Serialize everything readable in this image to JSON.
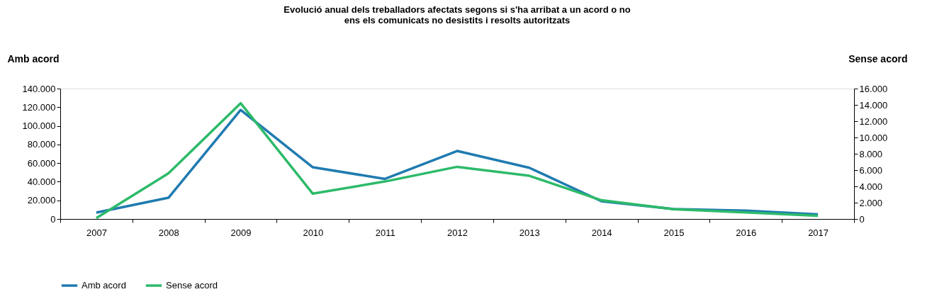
{
  "chart_data": {
    "type": "line",
    "title": [
      "Evolució anual dels treballadors afectats segons si s'ha arribat a un acord o no",
      "ens els comunicats no desistits i resolts autoritzats"
    ],
    "ylabel": "Amb acord",
    "y2label": "Sense acord",
    "categories": [
      "2007",
      "2008",
      "2009",
      "2010",
      "2011",
      "2012",
      "2013",
      "2014",
      "2015",
      "2016",
      "2017"
    ],
    "series": [
      {
        "name": "Amb acord",
        "color": "#1f7bb0",
        "values": [
          6800,
          22800,
          117000,
          55500,
          43000,
          73000,
          55000,
          19000,
          10600,
          9000,
          5000
        ]
      },
      {
        "name": "Sense acord",
        "color": "#2dba6a",
        "axis": "y2",
        "values": [
          100,
          5600,
          14200,
          3100,
          4600,
          6400,
          5300,
          2300,
          1200,
          800,
          400
        ]
      }
    ],
    "ylim": [
      0,
      140000
    ],
    "yticks": [
      {
        "value": 0,
        "label": "0"
      },
      {
        "value": 20000,
        "label": "20.000"
      },
      {
        "value": 40000,
        "label": "40.000"
      },
      {
        "value": 60000,
        "label": "60.000"
      },
      {
        "value": 80000,
        "label": "80.000"
      },
      {
        "value": 100000,
        "label": "100.000"
      },
      {
        "value": 120000,
        "label": "120.000"
      },
      {
        "value": 140000,
        "label": "140.000"
      }
    ],
    "y2lim": [
      0,
      16000
    ],
    "y2ticks": [
      {
        "value": 0,
        "label": "0"
      },
      {
        "value": 2000,
        "label": "2.000"
      },
      {
        "value": 4000,
        "label": "4.000"
      },
      {
        "value": 6000,
        "label": "6.000"
      },
      {
        "value": 8000,
        "label": "8.000"
      },
      {
        "value": 10000,
        "label": "10.000"
      },
      {
        "value": 12000,
        "label": "12.000"
      },
      {
        "value": 14000,
        "label": "14.000"
      },
      {
        "value": 16000,
        "label": "16.000"
      }
    ],
    "grid": false,
    "legend": "bottom",
    "marker": "none",
    "line_style": "solid"
  }
}
